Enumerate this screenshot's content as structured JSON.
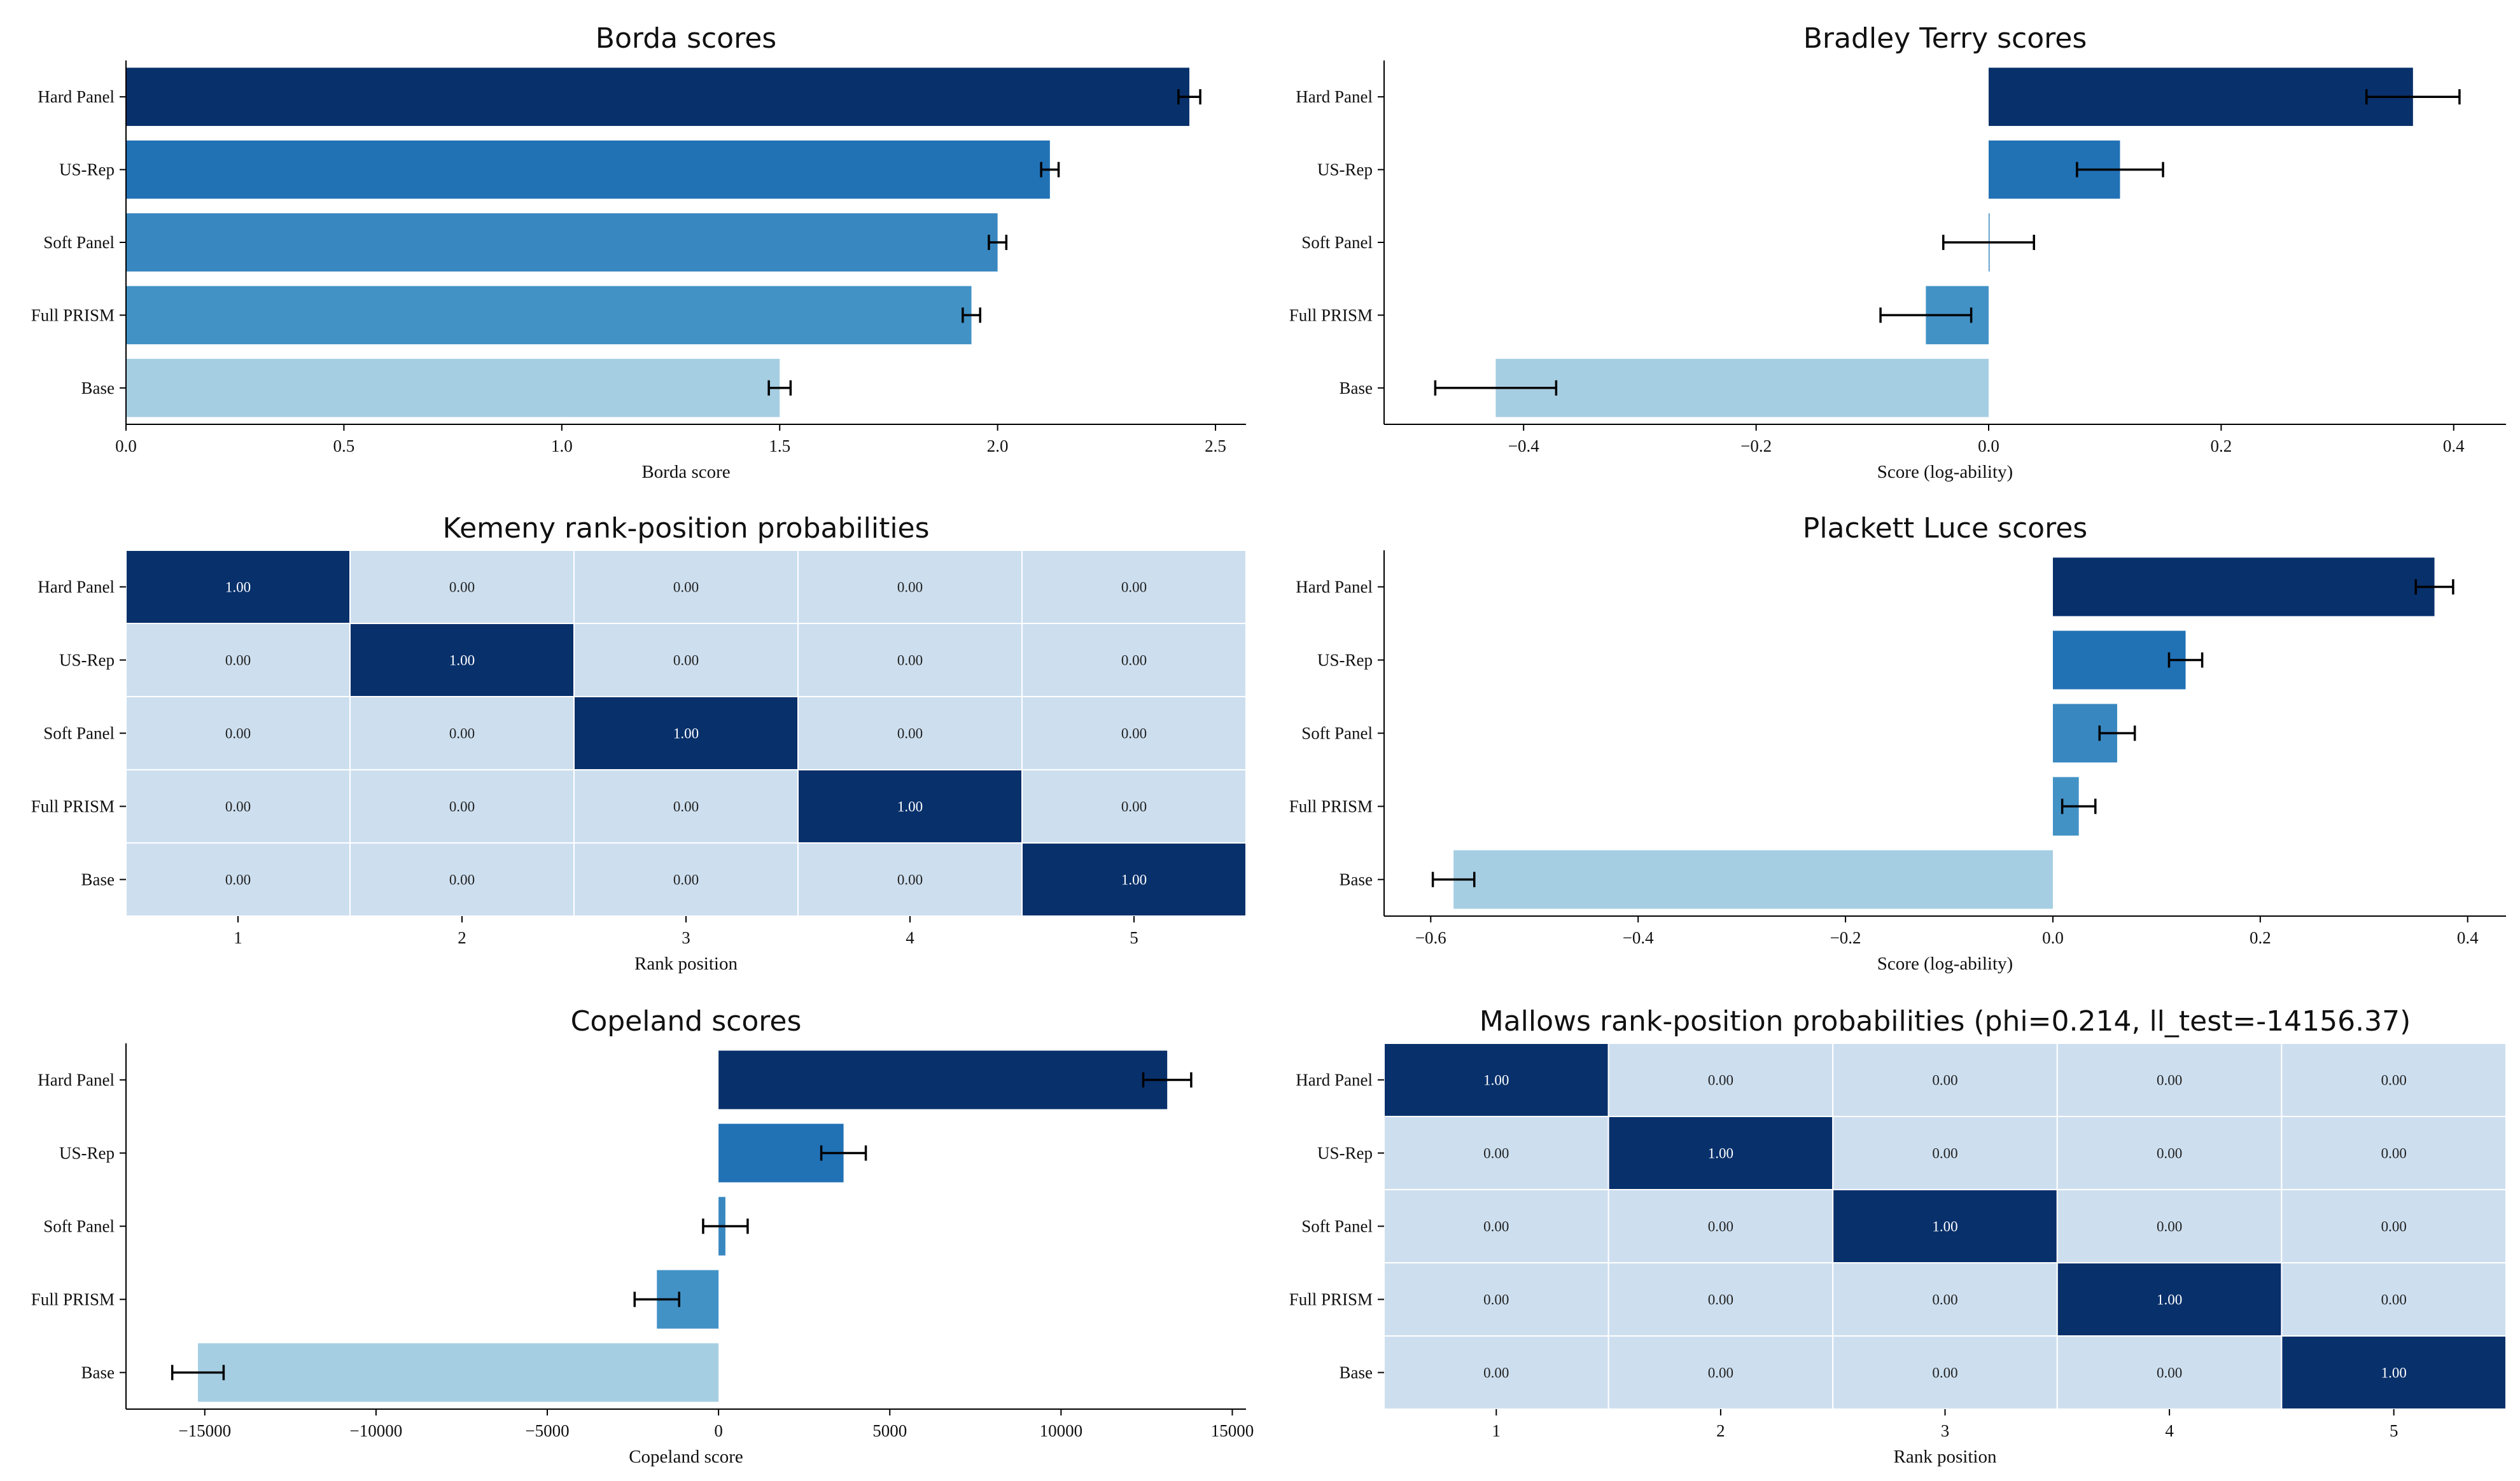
{
  "figure_title": "",
  "chart_data": [
    {
      "id": "borda",
      "type": "bar",
      "orientation": "horizontal",
      "title": "Borda scores",
      "xlabel": "Borda score",
      "categories": [
        "Hard Panel",
        "US-Rep",
        "Soft Panel",
        "Full PRISM",
        "Base"
      ],
      "values": [
        2.44,
        2.12,
        2.0,
        1.94,
        1.5
      ],
      "errors": [
        0.025,
        0.02,
        0.02,
        0.02,
        0.025
      ],
      "xlim": [
        0,
        2.57
      ],
      "xticks": [
        0,
        0.5,
        1,
        1.5,
        2,
        2.5
      ],
      "xtick_labels": [
        "0.0",
        "0.5",
        "1.0",
        "1.5",
        "2.0",
        "2.5"
      ],
      "colors": [
        "#08306b",
        "#2171b5",
        "#3887c0",
        "#4292c6",
        "#a6cee3"
      ]
    },
    {
      "id": "bradley-terry",
      "type": "bar",
      "orientation": "horizontal",
      "title": "Bradley Terry scores",
      "xlabel": "Score (log-ability)",
      "categories": [
        "Hard Panel",
        "US-Rep",
        "Soft Panel",
        "Full PRISM",
        "Base"
      ],
      "values": [
        0.365,
        0.113,
        0.0,
        -0.054,
        -0.424
      ],
      "errors": [
        0.04,
        0.037,
        0.039,
        0.039,
        0.052
      ],
      "xlim": [
        -0.52,
        0.445
      ],
      "xticks": [
        -0.4,
        -0.2,
        0,
        0.2,
        0.4
      ],
      "xtick_labels": [
        "−0.4",
        "−0.2",
        "0.0",
        "0.2",
        "0.4"
      ],
      "colors": [
        "#08306b",
        "#2171b5",
        "#3887c0",
        "#4292c6",
        "#a6cee3"
      ]
    },
    {
      "id": "kemeny",
      "type": "heatmap",
      "title": "Kemeny rank-position probabilities",
      "xlabel": "Rank position",
      "rows": [
        "Hard Panel",
        "US-Rep",
        "Soft Panel",
        "Full PRISM",
        "Base"
      ],
      "columns": [
        "1",
        "2",
        "3",
        "4",
        "5"
      ],
      "values": [
        [
          1.0,
          0.0,
          0.0,
          0.0,
          0.0
        ],
        [
          0.0,
          1.0,
          0.0,
          0.0,
          0.0
        ],
        [
          0.0,
          0.0,
          1.0,
          0.0,
          0.0
        ],
        [
          0.0,
          0.0,
          0.0,
          1.0,
          0.0
        ],
        [
          0.0,
          0.0,
          0.0,
          0.0,
          1.0
        ]
      ],
      "labels": [
        [
          "1.00",
          "0.00",
          "0.00",
          "0.00",
          "0.00"
        ],
        [
          "0.00",
          "1.00",
          "0.00",
          "0.00",
          "0.00"
        ],
        [
          "0.00",
          "0.00",
          "1.00",
          "0.00",
          "0.00"
        ],
        [
          "0.00",
          "0.00",
          "0.00",
          "1.00",
          "0.00"
        ],
        [
          "0.00",
          "0.00",
          "0.00",
          "0.00",
          "1.00"
        ]
      ],
      "colors": {
        "low": "#cddfef",
        "high": "#08306b"
      }
    },
    {
      "id": "plackett-luce",
      "type": "bar",
      "orientation": "horizontal",
      "title": "Plackett Luce scores",
      "xlabel": "Score (log-ability)",
      "categories": [
        "Hard Panel",
        "US-Rep",
        "Soft Panel",
        "Full PRISM",
        "Base"
      ],
      "values": [
        0.368,
        0.128,
        0.062,
        0.025,
        -0.578
      ],
      "errors": [
        0.018,
        0.016,
        0.017,
        0.016,
        0.02
      ],
      "xlim": [
        -0.645,
        0.437
      ],
      "xticks": [
        -0.6,
        -0.4,
        -0.2,
        0,
        0.2,
        0.4
      ],
      "xtick_labels": [
        "−0.6",
        "−0.4",
        "−0.2",
        "0.0",
        "0.2",
        "0.4"
      ],
      "colors": [
        "#08306b",
        "#2171b5",
        "#3887c0",
        "#4292c6",
        "#a6cee3"
      ]
    },
    {
      "id": "copeland",
      "type": "bar",
      "orientation": "horizontal",
      "title": "Copeland scores",
      "xlabel": "Copeland score",
      "categories": [
        "Hard Panel",
        "US-Rep",
        "Soft Panel",
        "Full PRISM",
        "Base"
      ],
      "values": [
        13100,
        3650,
        200,
        -1800,
        -15200
      ],
      "errors": [
        700,
        650,
        650,
        650,
        750
      ],
      "xlim": [
        -17300,
        15400
      ],
      "xticks": [
        -15000,
        -10000,
        -5000,
        0,
        5000,
        10000,
        15000
      ],
      "xtick_labels": [
        "−15000",
        "−10000",
        "−5000",
        "0",
        "5000",
        "10000",
        "15000"
      ],
      "colors": [
        "#08306b",
        "#2171b5",
        "#3887c0",
        "#4292c6",
        "#a6cee3"
      ]
    },
    {
      "id": "mallows",
      "type": "heatmap",
      "title": "Mallows rank-position probabilities (phi=0.214, ll_test=-14156.37)",
      "xlabel": "Rank position",
      "rows": [
        "Hard Panel",
        "US-Rep",
        "Soft Panel",
        "Full PRISM",
        "Base"
      ],
      "columns": [
        "1",
        "2",
        "3",
        "4",
        "5"
      ],
      "values": [
        [
          1.0,
          0.0,
          0.0,
          0.0,
          0.0
        ],
        [
          0.0,
          1.0,
          0.0,
          0.0,
          0.0
        ],
        [
          0.0,
          0.0,
          1.0,
          0.0,
          0.0
        ],
        [
          0.0,
          0.0,
          0.0,
          1.0,
          0.0
        ],
        [
          0.0,
          0.0,
          0.0,
          0.0,
          1.0
        ]
      ],
      "labels": [
        [
          "1.00",
          "0.00",
          "0.00",
          "0.00",
          "0.00"
        ],
        [
          "0.00",
          "1.00",
          "0.00",
          "0.00",
          "0.00"
        ],
        [
          "0.00",
          "0.00",
          "1.00",
          "0.00",
          "0.00"
        ],
        [
          "0.00",
          "0.00",
          "0.00",
          "1.00",
          "0.00"
        ],
        [
          "0.00",
          "0.00",
          "0.00",
          "0.00",
          "1.00"
        ]
      ],
      "colors": {
        "low": "#cddfef",
        "high": "#08306b"
      }
    }
  ]
}
